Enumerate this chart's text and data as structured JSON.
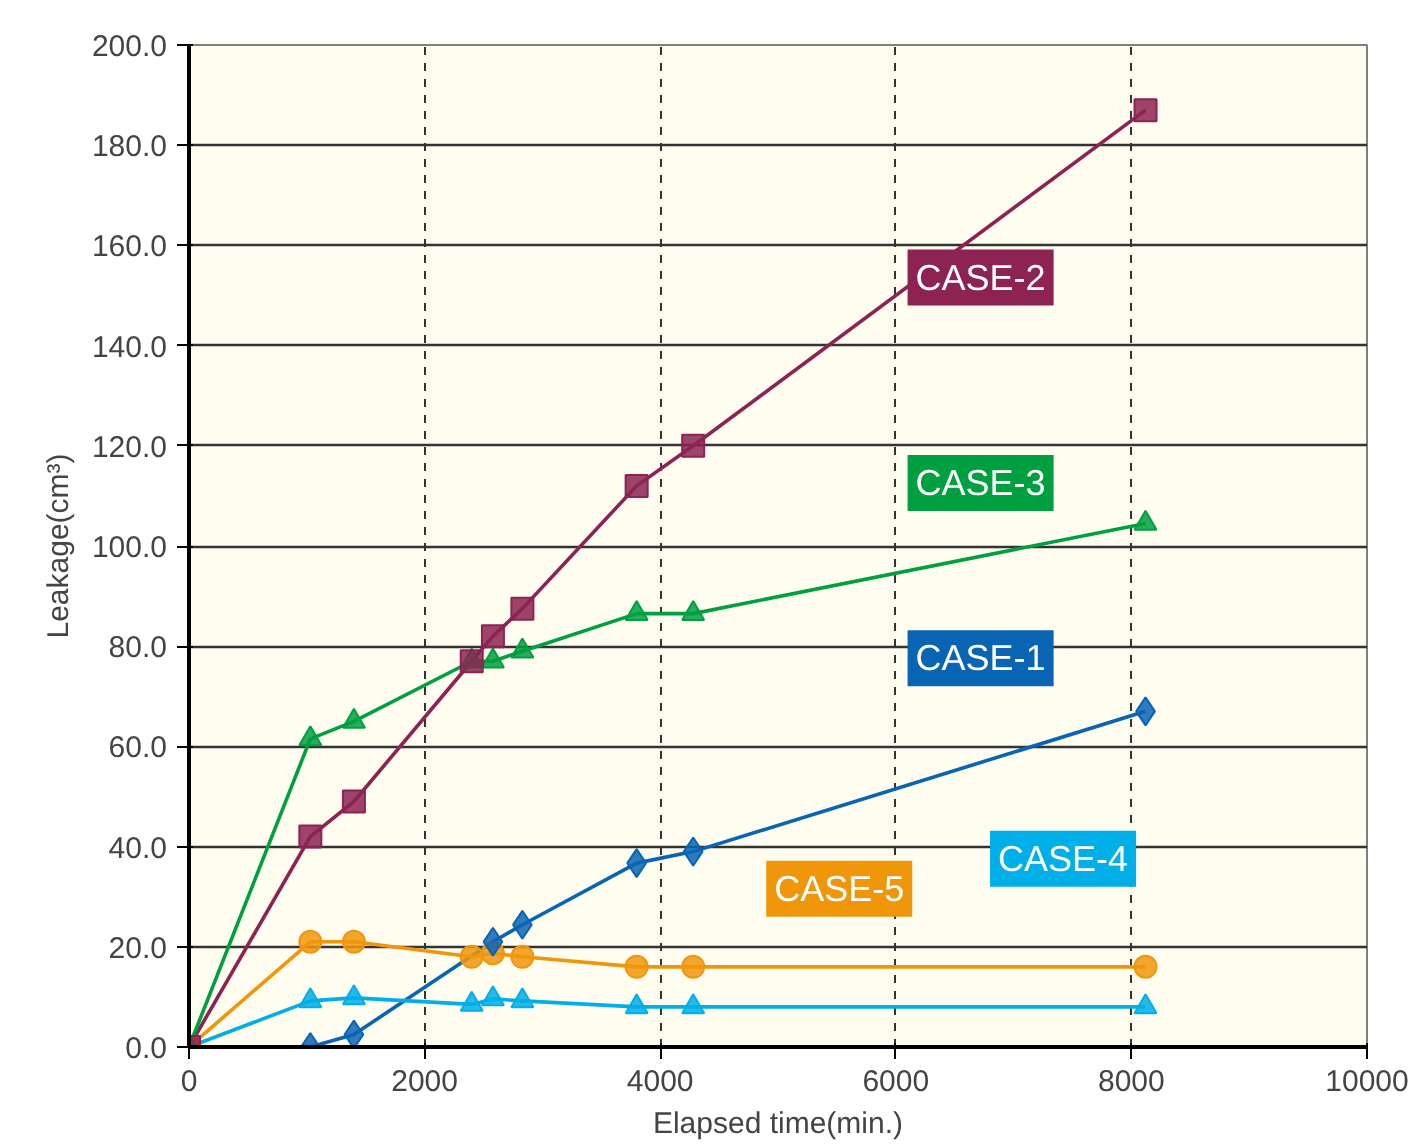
{
  "chart_data": {
    "type": "line",
    "xlabel": "Elapsed time(min.)",
    "ylabel": "Leakage(cm³)",
    "xlim": [
      0,
      10000
    ],
    "xticks": [
      0,
      2000,
      4000,
      6000,
      8000,
      10000
    ],
    "ylim": [
      0,
      200
    ],
    "yticks": [
      {
        "value": 0,
        "label": "0.0"
      },
      {
        "value": 20,
        "label": "20.0"
      },
      {
        "value": 40,
        "label": "40.0"
      },
      {
        "value": 60,
        "label": "60.0"
      },
      {
        "value": 80,
        "label": "80.0"
      },
      {
        "value": 100,
        "label": "100.0"
      },
      {
        "value": 120,
        "label": "120.0"
      },
      {
        "value": 140,
        "label": "140.0"
      },
      {
        "value": 160,
        "label": "160.0"
      },
      {
        "value": 180,
        "label": "180.0"
      },
      {
        "value": 200,
        "label": "200.0"
      }
    ],
    "grid": true,
    "line_style": "solid",
    "series": [
      {
        "name": "CASE-1",
        "color": "#0a64b4",
        "marker": "diamond",
        "x": [
          1030,
          1400,
          2580,
          2830,
          3800,
          4280,
          8120
        ],
        "values": [
          0,
          2.5,
          21,
          24.4,
          36.7,
          39,
          67
        ]
      },
      {
        "name": "CASE-2",
        "color": "#8c2352",
        "marker": "square",
        "x": [
          0,
          1030,
          1400,
          2400,
          2580,
          2830,
          3800,
          4280,
          8120
        ],
        "values": [
          0,
          42,
          49,
          77,
          82,
          87.5,
          112,
          120,
          187
        ]
      },
      {
        "name": "CASE-3",
        "color": "#00a040",
        "marker": "triangle",
        "x": [
          0,
          1030,
          1400,
          2400,
          2580,
          2830,
          3800,
          4280,
          8120
        ],
        "values": [
          0,
          61.5,
          65,
          77,
          77,
          79,
          86.5,
          86.5,
          104.5
        ]
      },
      {
        "name": "CASE-4",
        "color": "#00aee8",
        "marker": "triangle",
        "x": [
          0,
          1030,
          1400,
          2400,
          2580,
          2830,
          3800,
          4280,
          8120
        ],
        "values": [
          0,
          9.2,
          9.8,
          8.5,
          9.6,
          9.2,
          8,
          8,
          8
        ]
      },
      {
        "name": "CASE-5",
        "color": "#f0960a",
        "marker": "circle",
        "x": [
          0,
          1030,
          1400,
          2400,
          2580,
          2830,
          3800,
          4280,
          8120
        ],
        "values": [
          0,
          21,
          21,
          18,
          18.7,
          18,
          16,
          16,
          16
        ]
      }
    ]
  }
}
